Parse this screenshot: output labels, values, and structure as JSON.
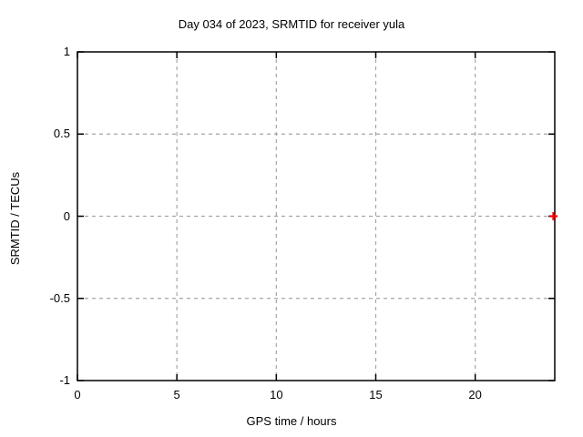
{
  "window": {
    "background": "#ffffff"
  },
  "chart_data": {
    "type": "scatter",
    "title": "Day 034 of 2023, SRMTID for receiver yula",
    "xlabel": "GPS time / hours",
    "ylabel": "SRMTID / TECUs",
    "xlim": [
      0,
      24
    ],
    "ylim": [
      -1,
      1
    ],
    "xticks": [
      0,
      5,
      10,
      15,
      20
    ],
    "xtick_labels": [
      "0",
      "5",
      "10",
      "15",
      "20"
    ],
    "yticks": [
      1,
      0.5,
      0,
      -0.5,
      -1
    ],
    "ytick_labels": [
      "1",
      "0.5",
      "0",
      "-0.5",
      "-1"
    ],
    "grid": true,
    "grid_style": "dashed",
    "legend": false,
    "series": [
      {
        "name": "SRMTID",
        "marker": "plus",
        "color": "#ff0000",
        "points": [
          {
            "x": 23.93,
            "y": 0.0
          }
        ]
      }
    ],
    "colors": {
      "background": "#ffffff",
      "axis": "#000000",
      "grid": "#a5a5a5",
      "text": "#000000",
      "marker": "#ff0000"
    }
  }
}
